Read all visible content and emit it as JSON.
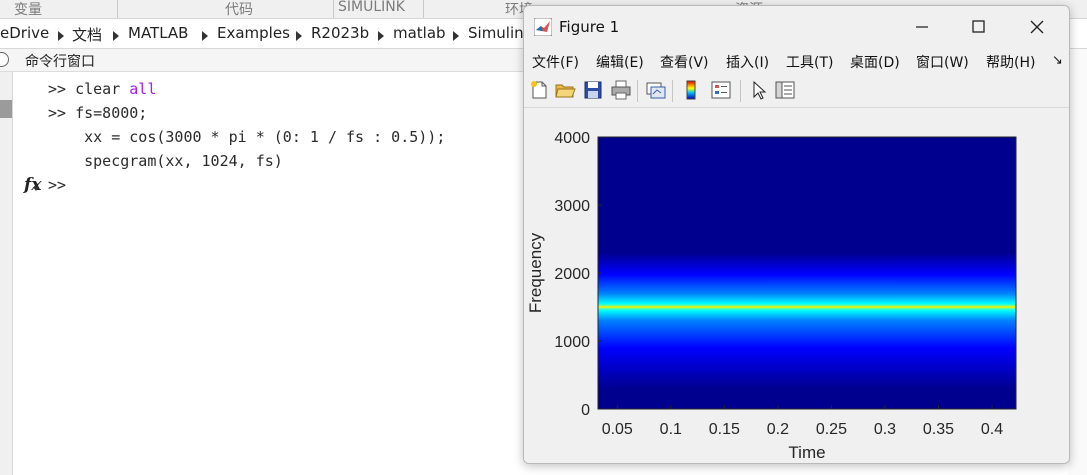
{
  "ribbon": {
    "tabs": [
      "变量",
      "代码",
      "SIMULINK",
      "环境",
      "资源"
    ]
  },
  "address_bar": {
    "crumbs": [
      "eDrive",
      "文档",
      "MATLAB",
      "Examples",
      "R2023b",
      "matlab",
      "Simulin"
    ]
  },
  "command_window": {
    "title": "命令行窗口",
    "lines": [
      {
        "prompt": ">> ",
        "text": "clear ",
        "keyword": "all"
      },
      {
        "prompt": ">> ",
        "text": "fs=8000;",
        "keyword": ""
      },
      {
        "prompt": "",
        "text": "    xx = cos(3000 * pi * (0: 1 / fs : 0.5));",
        "keyword": ""
      },
      {
        "prompt": "",
        "text": "    specgram(xx, 1024, fs)",
        "keyword": ""
      }
    ],
    "current_prompt": ">>",
    "fx_label": "fx"
  },
  "figure": {
    "title": "Figure 1",
    "menus": [
      "文件(F)",
      "编辑(E)",
      "查看(V)",
      "插入(I)",
      "工具(T)",
      "桌面(D)",
      "窗口(W)",
      "帮助(H)"
    ],
    "toolbar": [
      "new-figure-icon",
      "open-file-icon",
      "save-icon",
      "print-icon",
      "link-plot-icon",
      "colorbar-icon",
      "legend-icon",
      "edit-plot-arrow-icon",
      "property-editor-icon"
    ]
  },
  "chart_data": {
    "type": "heatmap",
    "title": "",
    "xlabel": "Time",
    "ylabel": "Frequency",
    "xlim": [
      0.032,
      0.4224
    ],
    "ylim": [
      0,
      4000
    ],
    "x_ticks": [
      "0.05",
      "0.1",
      "0.15",
      "0.2",
      "0.25",
      "0.3",
      "0.35",
      "0.4"
    ],
    "y_ticks": [
      "0",
      "1000",
      "2000",
      "3000",
      "4000"
    ],
    "x_tick_values": [
      0.05,
      0.1,
      0.15,
      0.2,
      0.25,
      0.3,
      0.35,
      0.4
    ],
    "y_tick_values": [
      0,
      1000,
      2000,
      3000,
      4000
    ],
    "peak_frequency": 1500,
    "colormap": [
      "#00008f",
      "#0000ff",
      "#0080ff",
      "#00ffff",
      "#80ff80",
      "#ffff00",
      "#ff8000",
      "#ff0000",
      "#800000"
    ],
    "colormap_name": "jet"
  }
}
